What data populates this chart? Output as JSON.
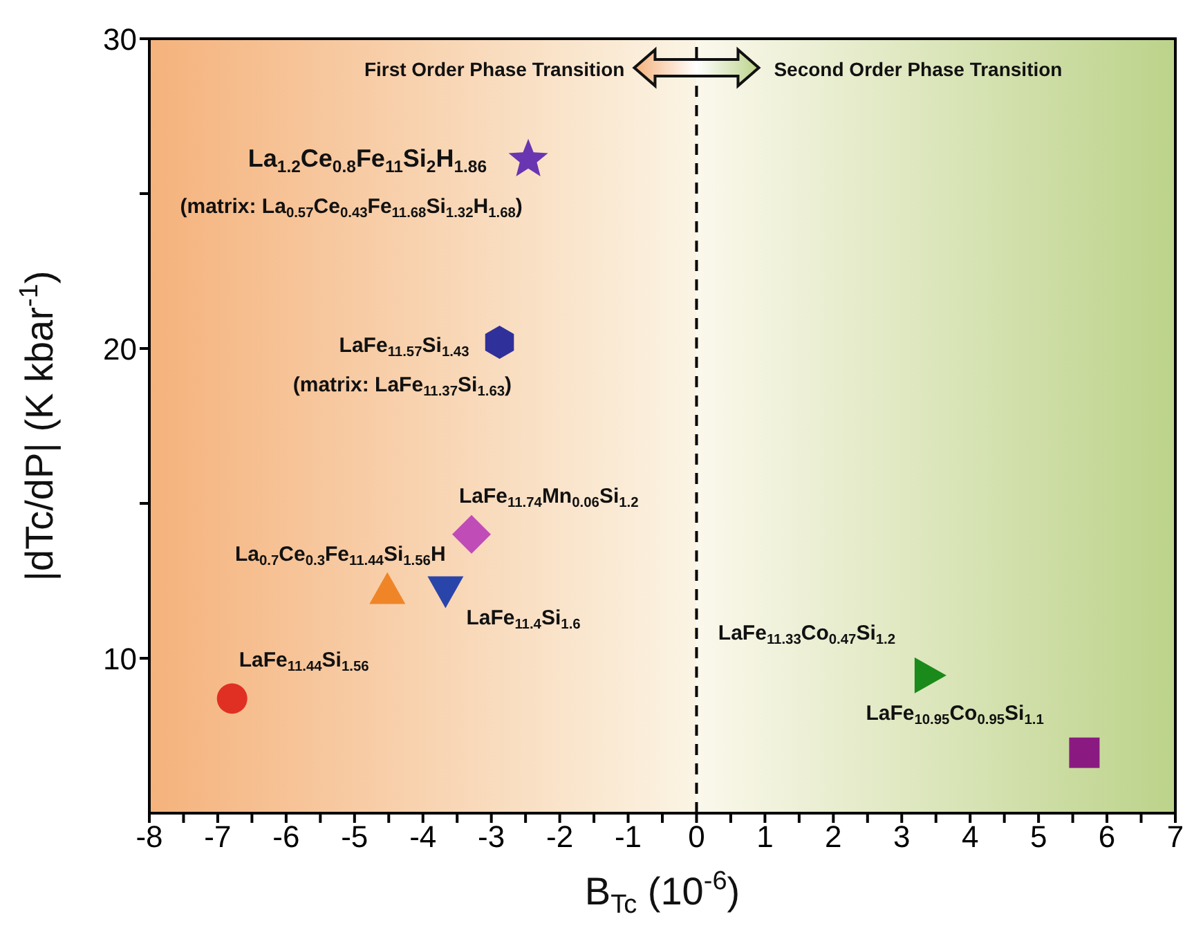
{
  "chart_data": {
    "type": "scatter",
    "xlabel": "B$_{Tc}$ (10$^{-6}$)",
    "ylabel": "|dTc/dP| (K kbar$^{-1}$)",
    "xlim": [
      -8,
      7
    ],
    "ylim": [
      5,
      30
    ],
    "xticks": [
      -8,
      {
        "value": -7.5,
        "label": null
      },
      -7,
      {
        "value": -6.5,
        "label": null
      },
      -6,
      {
        "value": -5.5,
        "label": null
      },
      -5,
      {
        "value": -4.5,
        "label": null
      },
      -4,
      {
        "value": -3.5,
        "label": null
      },
      -3,
      {
        "value": -2.5,
        "label": null
      },
      -2,
      {
        "value": -1.5,
        "label": null
      },
      -1,
      {
        "value": -0.5,
        "label": null
      },
      0,
      {
        "value": 0.5,
        "label": null
      },
      1,
      {
        "value": 1.5,
        "label": null
      },
      2,
      {
        "value": 2.5,
        "label": null
      },
      3,
      {
        "value": 3.5,
        "label": null
      },
      4,
      {
        "value": 4.5,
        "label": null
      },
      5,
      {
        "value": 5.5,
        "label": null
      },
      6,
      {
        "value": 6.5,
        "label": null
      },
      7
    ],
    "yticks": [
      10,
      {
        "value": 15,
        "label": null
      },
      20,
      {
        "value": 25,
        "label": null
      },
      30
    ],
    "grid": false,
    "legend": false,
    "series": [
      {
        "name": "La$_{1.2}$Ce$_{0.8}$Fe$_{11}$Si$_{2}$H$_{1.86}$",
        "color": "#6a35b0",
        "marker": "star",
        "x": [
          -2.46
        ],
        "values": [
          26.1
        ]
      },
      {
        "name": "LaFe$_{11.57}$Si$_{1.43}$",
        "color": "#30309a",
        "x": [
          -2.88
        ],
        "values": [
          20.2
        ]
      },
      {
        "name": "LaFe$_{11.74}$Mn$_{0.06}$Si$_{1.2}$",
        "color": "#c04cb8",
        "marker": "diamond",
        "x": [
          -3.29
        ],
        "values": [
          14.0
        ]
      },
      {
        "name": "La$_{0.7}$Ce$_{0.3}$Fe$_{11.44}$Si$_{1.56}$H",
        "color": "#f08528",
        "marker": "triangle",
        "x": [
          -4.52
        ],
        "values": [
          12.2
        ]
      },
      {
        "name": "LaFe$_{11.4}$Si$_{1.6}$",
        "color": "#2a45aa",
        "marker": "triangle-down",
        "x": [
          -3.67
        ],
        "values": [
          12.2
        ]
      },
      {
        "name": "LaFe$_{11.44}$Si$_{1.56}$",
        "color": "#e03024",
        "marker": "circle",
        "x": [
          -6.79
        ],
        "values": [
          8.7
        ]
      },
      {
        "name": "LaFe$_{11.33}$Co$_{0.47}$Si$_{1.2}$",
        "color": "#1a8a1a",
        "marker": "triangle-right",
        "x": [
          3.39
        ],
        "values": [
          9.45
        ]
      },
      {
        "name": "LaFe$_{10.95}$Co$_{0.95}$Si$_{1.1}$",
        "color": "#8a1a82",
        "marker": "square",
        "x": [
          5.67
        ],
        "values": [
          6.95
        ]
      }
    ],
    "annotations": [
      "(matrix: La$_{0.57}$Ce$_{0.43}$Fe$_{11.68}$Si$_{1.32}$H$_{1.68}$)",
      "(matrix: LaFe$_{11.37}$Si$_{1.63}$)"
    ],
    "ref_lines": [
      {
        "axis": "x",
        "value": 0,
        "color": "#000000",
        "line_style": "dashed"
      }
    ],
    "bands": [
      {
        "axis": "x",
        "from": -8,
        "to": 0,
        "label": "First Order Phase Transition",
        "color": "#f5b27c"
      },
      {
        "axis": "x",
        "from": 0,
        "to": 7,
        "label": "Second Order Phase Transition",
        "color": "#bcd38a"
      }
    ]
  }
}
